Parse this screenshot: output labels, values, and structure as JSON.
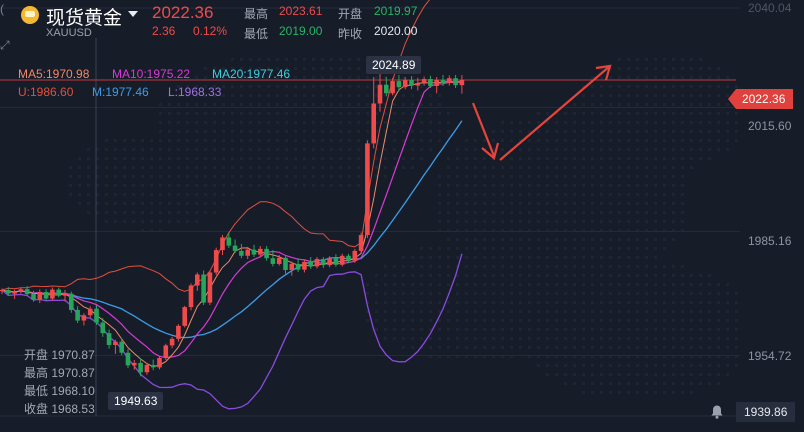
{
  "header": {
    "title": "现货黄金",
    "symbol": "XAUUSD",
    "price": "2022.36",
    "change": "2.36",
    "change_pct": "0.12%",
    "high_label": "最高",
    "high_value": "2023.61",
    "low_label": "最低",
    "low_value": "2019.00",
    "open_label": "开盘",
    "open_value": "2019.97",
    "prev_close_label": "昨收",
    "prev_close_value": "2020.00"
  },
  "ma_legend": {
    "ma5": "MA5:1970.98",
    "ma10": "MA10:1975.22",
    "ma20": "MA20:1977.46",
    "upper": "U:1986.60",
    "mid": "M:1977.46",
    "lower": "L:1968.33"
  },
  "ohlc_panel": {
    "open_label": "开盘",
    "open_value": "1970.87",
    "high_label": "最高",
    "high_value": "1970.87",
    "low_label": "最低",
    "low_value": "1968.10",
    "close_label": "收盘",
    "close_value": "1968.53"
  },
  "annotations": {
    "max_tag": "2024.89",
    "min_tag": "1949.63"
  },
  "axis": {
    "current_price": "2022.36",
    "lowest_visible": "1939.86"
  },
  "colors": {
    "bg": "#171c29",
    "up": "#ef4b4b",
    "down": "#26a65b",
    "ma5": "#f08a6a",
    "ma10": "#d63bd6",
    "ma20": "#3b9de8",
    "upper": "#e0503c",
    "lower": "#8a4be0",
    "arrow": "#e5453a"
  },
  "icons": [
    "gold-coin-icon",
    "dropdown-caret-icon",
    "bell-icon",
    "trend-arrow-up-icon",
    "trend-arrow-down-icon"
  ],
  "chart_data": {
    "type": "candlestick",
    "ylim": [
      1939.86,
      2040.04
    ],
    "yticks": [
      2040.04,
      2015.6,
      1985.16,
      1954.72
    ],
    "candles": [
      [
        1970.5,
        1971.2,
        1969.8,
        1970.8
      ],
      [
        1970.8,
        1971.5,
        1969.5,
        1969.9
      ],
      [
        1969.9,
        1970.9,
        1968.6,
        1970.4
      ],
      [
        1970.4,
        1971.3,
        1969.9,
        1971.0
      ],
      [
        1971.0,
        1971.8,
        1969.4,
        1969.8
      ],
      [
        1969.8,
        1970.6,
        1967.9,
        1968.4
      ],
      [
        1968.4,
        1970.9,
        1967.6,
        1970.3
      ],
      [
        1970.3,
        1971.0,
        1968.2,
        1968.7
      ],
      [
        1968.7,
        1971.4,
        1968.2,
        1970.9
      ],
      [
        1970.9,
        1971.4,
        1969.0,
        1969.4
      ],
      [
        1969.4,
        1970.8,
        1968.0,
        1969.9
      ],
      [
        1969.9,
        1970.4,
        1965.2,
        1965.9
      ],
      [
        1965.9,
        1966.8,
        1962.7,
        1963.3
      ],
      [
        1963.3,
        1965.1,
        1962.1,
        1964.6
      ],
      [
        1964.6,
        1966.8,
        1963.9,
        1966.2
      ],
      [
        1966.2,
        1967.1,
        1962.2,
        1962.8
      ],
      [
        1962.8,
        1963.9,
        1959.3,
        1960.2
      ],
      [
        1960.2,
        1961.1,
        1956.4,
        1957.3
      ],
      [
        1957.3,
        1958.6,
        1955.1,
        1958.1
      ],
      [
        1958.1,
        1958.9,
        1954.8,
        1955.4
      ],
      [
        1955.4,
        1956.3,
        1951.6,
        1952.3
      ],
      [
        1952.3,
        1953.6,
        1951.2,
        1952.9
      ],
      [
        1952.9,
        1954.0,
        1949.6,
        1950.6
      ],
      [
        1950.6,
        1952.9,
        1950.0,
        1952.4
      ],
      [
        1952.4,
        1953.7,
        1951.1,
        1951.8
      ],
      [
        1951.8,
        1954.6,
        1951.3,
        1954.1
      ],
      [
        1954.1,
        1957.6,
        1953.6,
        1957.2
      ],
      [
        1957.2,
        1959.3,
        1956.5,
        1958.8
      ],
      [
        1958.8,
        1962.4,
        1958.1,
        1962.0
      ],
      [
        1962.0,
        1966.9,
        1961.6,
        1966.6
      ],
      [
        1966.6,
        1972.4,
        1965.8,
        1971.9
      ],
      [
        1971.9,
        1975.1,
        1970.6,
        1974.6
      ],
      [
        1974.6,
        1975.6,
        1967.1,
        1967.7
      ],
      [
        1967.7,
        1975.6,
        1967.1,
        1975.1
      ],
      [
        1975.1,
        1981.2,
        1974.5,
        1980.6
      ],
      [
        1980.6,
        1984.3,
        1979.4,
        1983.7
      ],
      [
        1983.7,
        1984.9,
        1981.1,
        1981.7
      ],
      [
        1981.7,
        1983.2,
        1979.9,
        1980.4
      ],
      [
        1980.4,
        1982.1,
        1978.6,
        1979.2
      ],
      [
        1979.2,
        1981.4,
        1978.4,
        1980.7
      ],
      [
        1980.7,
        1981.9,
        1978.9,
        1979.5
      ],
      [
        1979.5,
        1981.6,
        1979.0,
        1980.9
      ],
      [
        1980.9,
        1981.6,
        1978.0,
        1978.6
      ],
      [
        1978.6,
        1980.6,
        1976.6,
        1977.2
      ],
      [
        1977.2,
        1979.4,
        1976.8,
        1978.7
      ],
      [
        1978.7,
        1979.1,
        1974.8,
        1975.7
      ],
      [
        1975.7,
        1977.8,
        1974.3,
        1977.2
      ],
      [
        1977.2,
        1978.6,
        1975.2,
        1975.8
      ],
      [
        1975.8,
        1978.3,
        1975.1,
        1977.7
      ],
      [
        1977.7,
        1978.9,
        1976.0,
        1976.6
      ],
      [
        1976.6,
        1978.9,
        1976.1,
        1978.4
      ],
      [
        1978.4,
        1978.9,
        1976.2,
        1976.9
      ],
      [
        1976.9,
        1979.1,
        1976.4,
        1978.6
      ],
      [
        1978.6,
        1979.6,
        1976.5,
        1977.0
      ],
      [
        1977.0,
        1979.7,
        1976.6,
        1979.2
      ],
      [
        1979.2,
        1979.7,
        1977.4,
        1978.0
      ],
      [
        1978.0,
        1980.9,
        1977.5,
        1980.4
      ],
      [
        1980.4,
        1984.9,
        1979.8,
        1984.3
      ],
      [
        1984.3,
        2007.5,
        1983.6,
        2006.8
      ],
      [
        2006.8,
        2023.1,
        2005.6,
        2016.6
      ],
      [
        2016.6,
        2024.9,
        2014.6,
        2021.2
      ],
      [
        2021.2,
        2023.1,
        2018.4,
        2019.1
      ],
      [
        2019.1,
        2022.9,
        2018.6,
        2022.1
      ],
      [
        2022.1,
        2023.6,
        2019.6,
        2020.6
      ],
      [
        2020.6,
        2023.1,
        2020.1,
        2022.4
      ],
      [
        2022.4,
        2023.3,
        2020.1,
        2021.0
      ],
      [
        2021.0,
        2022.9,
        2019.8,
        2021.6
      ],
      [
        2021.6,
        2023.2,
        2021.0,
        2022.6
      ],
      [
        2022.6,
        2023.4,
        2020.4,
        2020.9
      ],
      [
        2020.9,
        2023.1,
        2019.1,
        2022.4
      ],
      [
        2022.4,
        2023.6,
        2020.9,
        2021.6
      ],
      [
        2021.6,
        2023.5,
        2021.0,
        2022.8
      ],
      [
        2022.8,
        2023.6,
        2020.4,
        2021.1
      ],
      [
        2021.1,
        2023.6,
        2019.0,
        2022.36
      ]
    ]
  }
}
